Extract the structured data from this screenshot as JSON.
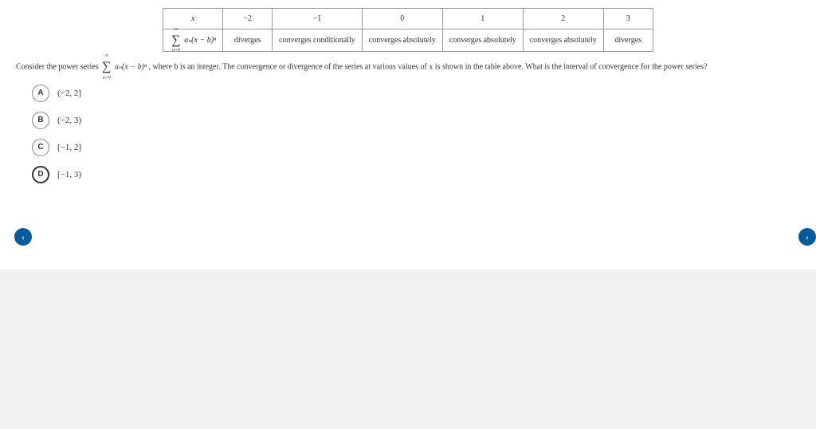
{
  "table": {
    "header": [
      "x",
      "−2",
      "−1",
      "0",
      "1",
      "2",
      "3"
    ],
    "formula_cell": "∑ aₙ(x − b)ⁿ",
    "row2": [
      "diverges",
      "converges conditionally",
      "converges absolutely",
      "converges absolutely",
      "converges absolutely",
      "diverges"
    ]
  },
  "question": {
    "prefix": "Consider the power series ",
    "series_expr": "aₙ(x − b)ⁿ",
    "sum_upper": "∞",
    "sum_lower": "n=0",
    "middle": ", where b is an integer. The convergence or divergence of the series at various values of x is shown in the table above. What is the interval of convergence for the power series?"
  },
  "options": [
    {
      "letter": "A",
      "text": "(−2, 2]",
      "selected": false
    },
    {
      "letter": "B",
      "text": "(−2, 3)",
      "selected": false
    },
    {
      "letter": "C",
      "text": "[−1, 2]",
      "selected": false
    },
    {
      "letter": "D",
      "text": "[−1, 3)",
      "selected": true
    }
  ],
  "nav": {
    "prev": "‹",
    "next": "›"
  },
  "colors": {
    "nav_bg": "#005b9f",
    "border": "#999999",
    "text": "#333333",
    "footer_bg": "#f0f0f0"
  }
}
